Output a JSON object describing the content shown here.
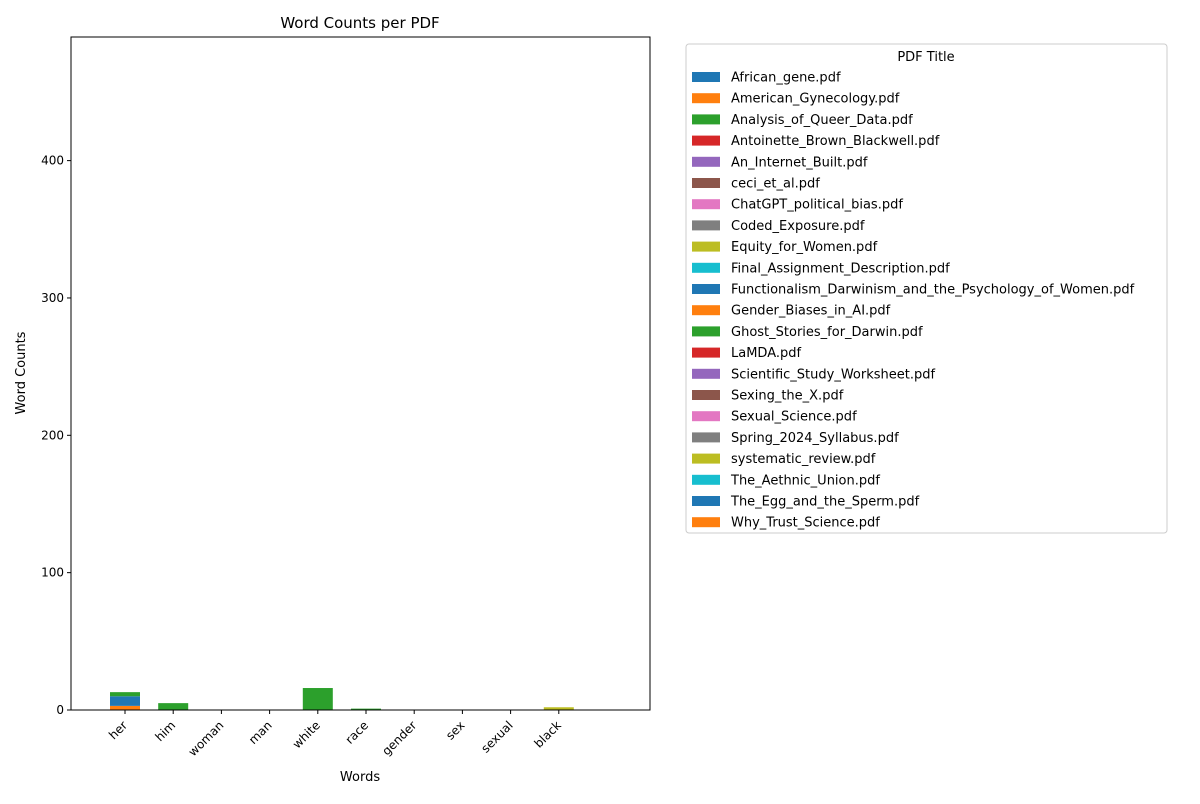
{
  "chart_data": {
    "type": "bar",
    "stacked": true,
    "title": "Word Counts per PDF",
    "xlabel": "Words",
    "ylabel": "Word Counts",
    "ylim": [
      0,
      490
    ],
    "yticks": [
      0,
      100,
      200,
      300,
      400
    ],
    "grid": false,
    "legend_title": "PDF Title",
    "legend_position": "outside-right",
    "categories": [
      "her",
      "him",
      "woman",
      "man",
      "white",
      "race",
      "gender",
      "sex",
      "sexual",
      "black"
    ],
    "series": [
      {
        "name": "African_gene.pdf",
        "color": "#1f77b4",
        "values": [
          0,
          0,
          0,
          0,
          0,
          0,
          0,
          0,
          0,
          0
        ]
      },
      {
        "name": "American_Gynecology.pdf",
        "color": "#ff7f0e",
        "values": [
          3,
          0,
          0,
          0,
          0,
          0,
          0,
          0,
          0,
          0
        ]
      },
      {
        "name": "Analysis_of_Queer_Data.pdf",
        "color": "#2ca02c",
        "values": [
          0,
          0,
          0,
          0,
          0,
          0,
          0,
          0,
          0,
          0
        ]
      },
      {
        "name": "Antoinette_Brown_Blackwell.pdf",
        "color": "#d62728",
        "values": [
          0,
          0,
          0,
          0,
          0,
          0,
          0,
          0,
          0,
          0
        ]
      },
      {
        "name": "An_Internet_Built.pdf",
        "color": "#9467bd",
        "values": [
          0,
          0,
          0,
          0,
          0,
          0,
          0,
          0,
          0,
          0
        ]
      },
      {
        "name": "ceci_et_al.pdf",
        "color": "#8c564b",
        "values": [
          0,
          0,
          0,
          0,
          0,
          0,
          0,
          0,
          0,
          0
        ]
      },
      {
        "name": "ChatGPT_political_bias.pdf",
        "color": "#e377c2",
        "values": [
          0,
          0,
          0,
          0,
          0,
          0,
          0,
          0,
          0,
          0
        ]
      },
      {
        "name": "Coded_Exposure.pdf",
        "color": "#7f7f7f",
        "values": [
          0,
          0,
          0,
          0,
          0,
          0,
          0,
          0,
          0,
          0
        ]
      },
      {
        "name": "Equity_for_Women.pdf",
        "color": "#bcbd22",
        "values": [
          0,
          0,
          0,
          0,
          0,
          0,
          0,
          0,
          0,
          2
        ]
      },
      {
        "name": "Final_Assignment_Description.pdf",
        "color": "#17becf",
        "values": [
          0,
          0,
          0,
          0,
          0,
          0,
          0,
          0,
          0,
          0
        ]
      },
      {
        "name": "Functionalism_Darwinism_and_the_Psychology_of_Women.pdf",
        "color": "#1f77b4",
        "values": [
          7,
          0,
          0,
          0,
          0,
          0,
          0,
          0,
          0,
          0
        ]
      },
      {
        "name": "Gender_Biases_in_AI.pdf",
        "color": "#ff7f0e",
        "values": [
          0,
          0,
          0,
          0,
          0,
          0,
          0,
          0,
          0,
          0
        ]
      },
      {
        "name": "Ghost_Stories_for_Darwin.pdf",
        "color": "#2ca02c",
        "values": [
          3,
          5,
          0,
          0,
          16,
          1,
          0,
          0,
          0,
          0
        ]
      },
      {
        "name": "LaMDA.pdf",
        "color": "#d62728",
        "values": [
          0,
          0,
          0,
          0,
          0,
          0,
          0,
          0,
          0,
          0
        ]
      },
      {
        "name": "Scientific_Study_Worksheet.pdf",
        "color": "#9467bd",
        "values": [
          0,
          0,
          0,
          0,
          0,
          0,
          0,
          0,
          0,
          0
        ]
      },
      {
        "name": "Sexing_the_X.pdf",
        "color": "#8c564b",
        "values": [
          0,
          0,
          0,
          0,
          0,
          0,
          0,
          0,
          0,
          0
        ]
      },
      {
        "name": "Sexual_Science.pdf",
        "color": "#e377c2",
        "values": [
          0,
          0,
          0,
          0,
          0,
          0,
          0,
          0,
          0,
          0
        ]
      },
      {
        "name": "Spring_2024_Syllabus.pdf",
        "color": "#7f7f7f",
        "values": [
          0,
          0,
          0,
          0,
          0,
          0,
          0,
          0,
          0,
          0
        ]
      },
      {
        "name": "systematic_review.pdf",
        "color": "#bcbd22",
        "values": [
          0,
          0,
          0,
          0,
          0,
          0,
          0,
          0,
          0,
          0
        ]
      },
      {
        "name": "The_Aethnic_Union.pdf",
        "color": "#17becf",
        "values": [
          0,
          0,
          0,
          0,
          0,
          0,
          0,
          0,
          0,
          0
        ]
      },
      {
        "name": "The_Egg_and_the_Sperm.pdf",
        "color": "#1f77b4",
        "values": [
          0,
          0,
          0,
          0,
          0,
          0,
          0,
          0,
          0,
          0
        ]
      },
      {
        "name": "Why_Trust_Science.pdf",
        "color": "#ff7f0e",
        "values": [
          0,
          0,
          0,
          0,
          0,
          0,
          0,
          0,
          0,
          0
        ]
      }
    ]
  }
}
